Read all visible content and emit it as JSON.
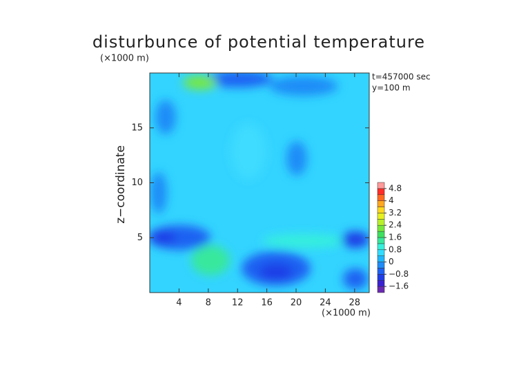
{
  "chart_data": {
    "type": "contour",
    "title": "disturbunce of potential temperature",
    "y_unit_label": "(×1000 m)",
    "x_unit_label": "(×1000 m)",
    "ylabel": "z−coordinate",
    "annotations": [
      "t=457000 sec",
      "y=100 m"
    ],
    "xlim": [
      0,
      30
    ],
    "ylim": [
      0,
      20
    ],
    "xticks": [
      4,
      8,
      12,
      16,
      20,
      24,
      28
    ],
    "yticks": [
      5,
      10,
      15
    ],
    "colorbar_levels": [
      -2.0,
      -1.6,
      -1.2,
      -0.8,
      -0.4,
      0,
      0.4,
      0.8,
      1.2,
      1.6,
      2.0,
      2.4,
      2.8,
      3.2,
      3.6,
      4,
      4.4,
      4.8,
      5.2
    ],
    "colorbar_colors": [
      "#6a2ab0",
      "#3a22d0",
      "#1f3ee6",
      "#1e62f2",
      "#1f8cf7",
      "#1fb6fb",
      "#33dcff",
      "#36f0dc",
      "#38e89c",
      "#3ee060",
      "#78e83c",
      "#b8f02c",
      "#e6f020",
      "#ffd820",
      "#ffa820",
      "#ff6a20",
      "#ff2e28",
      "#ff9a9a"
    ],
    "colorbar_ticks": [
      {
        "value": -1.6,
        "label": "−1.6"
      },
      {
        "value": -0.8,
        "label": "−0.8"
      },
      0,
      0.8,
      1.6,
      2.4,
      3.2,
      4,
      4.8
    ]
  }
}
